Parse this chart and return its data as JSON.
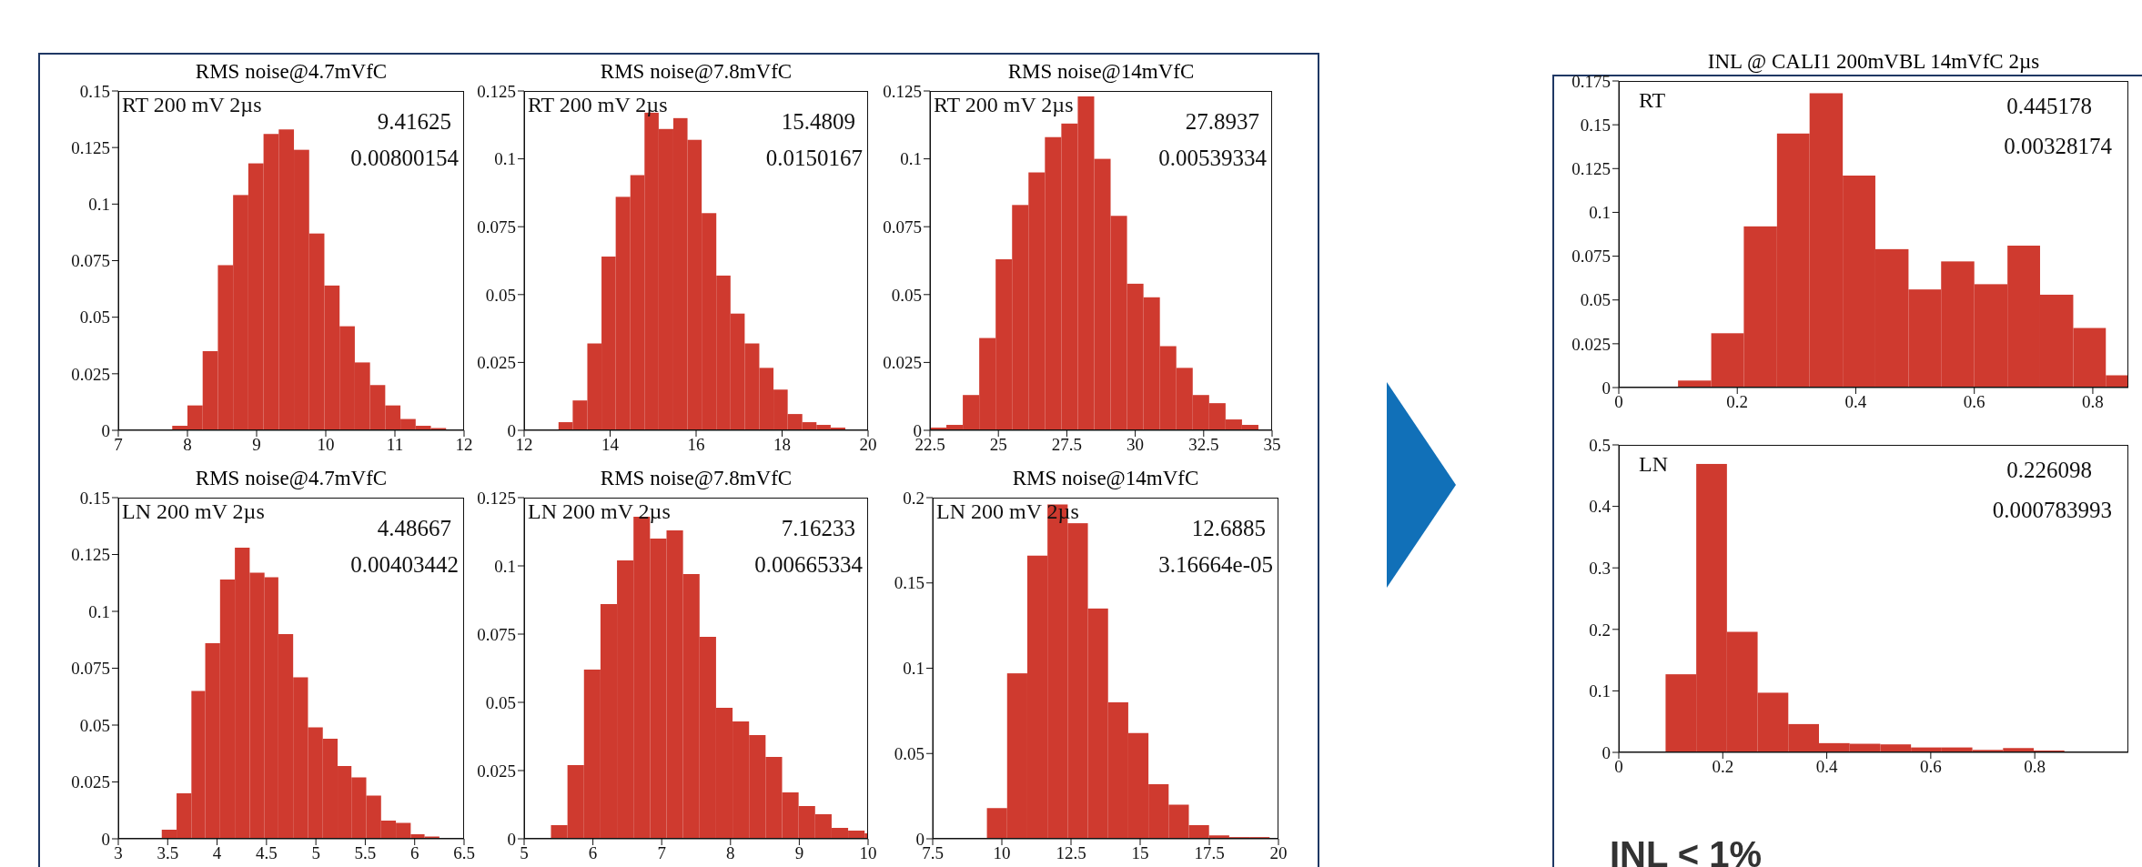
{
  "chart_data": [
    {
      "type": "histogram",
      "title": "RMS noise@4.7mVfC",
      "annotations": [
        "RT 200 mV 2µs",
        "9.41625",
        "0.00800154"
      ],
      "color": "#cf3a2f",
      "bins": [
        7.78,
        8.0,
        8.22,
        8.44,
        8.66,
        8.88,
        9.1,
        9.32,
        9.54,
        9.76,
        9.98,
        10.2,
        10.42,
        10.64,
        10.86,
        11.08,
        11.3,
        11.52,
        11.74
      ],
      "values": [
        0.002,
        0.011,
        0.035,
        0.073,
        0.104,
        0.118,
        0.131,
        0.133,
        0.124,
        0.087,
        0.064,
        0.046,
        0.03,
        0.02,
        0.011,
        0.005,
        0.002,
        0.001
      ],
      "xlim": [
        7,
        12
      ],
      "xticks": [
        7,
        8,
        9,
        10,
        11,
        12
      ],
      "ylim": [
        0,
        0.15
      ],
      "yticks": [
        0,
        0.025,
        0.05,
        0.075,
        0.1,
        0.125,
        0.15
      ]
    },
    {
      "type": "histogram",
      "title": "RMS noise@7.8mVfC",
      "annotations": [
        "RT 200 mV 2µs",
        "15.4809",
        "0.0150167"
      ],
      "color": "#cf3a2f",
      "bins": [
        12.8,
        13.13,
        13.47,
        13.8,
        14.13,
        14.47,
        14.8,
        15.13,
        15.47,
        15.8,
        16.13,
        16.47,
        16.8,
        17.13,
        17.47,
        17.8,
        18.13,
        18.47,
        18.8,
        19.13,
        19.47
      ],
      "values": [
        0.003,
        0.011,
        0.032,
        0.064,
        0.086,
        0.094,
        0.117,
        0.111,
        0.115,
        0.107,
        0.08,
        0.057,
        0.043,
        0.032,
        0.023,
        0.015,
        0.006,
        0.003,
        0.002,
        0.001
      ],
      "xlim": [
        12,
        20
      ],
      "xticks": [
        12,
        14,
        16,
        18,
        20
      ],
      "ylim": [
        0,
        0.125
      ],
      "yticks": [
        0,
        0.025,
        0.05,
        0.075,
        0.1,
        0.125
      ]
    },
    {
      "type": "histogram",
      "title": "RMS noise@14mVfC",
      "annotations": [
        "RT 200 mV 2µs",
        "27.8937",
        "0.00539334"
      ],
      "color": "#cf3a2f",
      "bins": [
        22.5,
        23.1,
        23.7,
        24.3,
        24.9,
        25.5,
        26.1,
        26.7,
        27.3,
        27.9,
        28.5,
        29.1,
        29.7,
        30.3,
        30.9,
        31.5,
        32.1,
        32.7,
        33.3,
        33.9,
        34.5
      ],
      "values": [
        0.001,
        0.002,
        0.013,
        0.034,
        0.063,
        0.083,
        0.095,
        0.108,
        0.113,
        0.123,
        0.1,
        0.079,
        0.054,
        0.049,
        0.031,
        0.023,
        0.013,
        0.01,
        0.004,
        0.002
      ],
      "xlim": [
        22.5,
        35
      ],
      "xticks": [
        22.5,
        25,
        27.5,
        30,
        32.5,
        35
      ],
      "ylim": [
        0,
        0.125
      ],
      "yticks": [
        0,
        0.025,
        0.05,
        0.075,
        0.1,
        0.125
      ]
    },
    {
      "type": "histogram",
      "title": "RMS noise@4.7mVfC",
      "annotations": [
        "LN 200 mV 2µs",
        "4.48667",
        "0.00403442"
      ],
      "color": "#cf3a2f",
      "bins": [
        3.44,
        3.59,
        3.74,
        3.88,
        4.03,
        4.18,
        4.33,
        4.48,
        4.62,
        4.77,
        4.92,
        5.07,
        5.22,
        5.36,
        5.51,
        5.66,
        5.81,
        5.96,
        6.1,
        6.25
      ],
      "values": [
        0.004,
        0.02,
        0.065,
        0.086,
        0.114,
        0.128,
        0.117,
        0.115,
        0.09,
        0.071,
        0.049,
        0.044,
        0.032,
        0.027,
        0.019,
        0.008,
        0.007,
        0.002,
        0.001
      ],
      "xlim": [
        3,
        6.5
      ],
      "xticks": [
        3,
        3.5,
        4,
        4.5,
        5,
        5.5,
        6,
        6.5
      ],
      "ylim": [
        0,
        0.15
      ],
      "yticks": [
        0,
        0.025,
        0.05,
        0.075,
        0.1,
        0.125,
        0.15
      ]
    },
    {
      "type": "histogram",
      "title": "RMS noise@7.8mVfC",
      "annotations": [
        "LN 200 mV 2µs",
        "7.16233",
        "0.00665334"
      ],
      "color": "#cf3a2f",
      "bins": [
        5.39,
        5.63,
        5.87,
        6.11,
        6.35,
        6.59,
        6.83,
        7.07,
        7.31,
        7.55,
        7.79,
        8.03,
        8.27,
        8.51,
        8.75,
        8.99,
        9.23,
        9.47,
        9.71,
        9.95,
        10
      ],
      "values": [
        0.005,
        0.027,
        0.062,
        0.086,
        0.102,
        0.118,
        0.11,
        0.113,
        0.097,
        0.074,
        0.048,
        0.043,
        0.038,
        0.03,
        0.017,
        0.012,
        0.009,
        0.004,
        0.003,
        0.002
      ],
      "xlim": [
        5,
        10
      ],
      "xticks": [
        5,
        6,
        7,
        8,
        9,
        10
      ],
      "ylim": [
        0,
        0.125
      ],
      "yticks": [
        0,
        0.025,
        0.05,
        0.075,
        0.1,
        0.125
      ]
    },
    {
      "type": "histogram",
      "title": "RMS noise@14mVfC",
      "annotations": [
        "LN 200 mV 2µs",
        "12.6885",
        "3.16664e-05"
      ],
      "color": "#cf3a2f",
      "bins": [
        9.46,
        10.19,
        10.92,
        11.65,
        12.38,
        13.11,
        13.84,
        14.57,
        15.3,
        16.03,
        16.76,
        17.49,
        18.22,
        18.95,
        19.68
      ],
      "values": [
        0.018,
        0.097,
        0.166,
        0.196,
        0.185,
        0.135,
        0.08,
        0.062,
        0.032,
        0.02,
        0.008,
        0.002,
        0.001,
        0.001
      ],
      "xlim": [
        7.5,
        20
      ],
      "xticks": [
        7.5,
        10,
        12.5,
        15,
        17.5,
        20
      ],
      "ylim": [
        0,
        0.2
      ],
      "yticks": [
        0,
        0.05,
        0.1,
        0.15,
        0.2
      ]
    },
    {
      "type": "histogram",
      "title": "INL @ CALI1 200mVBL 14mVfC 2µs",
      "annotations": [
        "RT",
        "0.445178",
        "0.00328174"
      ],
      "color": "#cf3a2f",
      "bins": [
        0.1,
        0.156,
        0.211,
        0.267,
        0.322,
        0.378,
        0.433,
        0.489,
        0.544,
        0.6,
        0.656,
        0.711,
        0.767,
        0.822,
        0.86
      ],
      "values": [
        0.004,
        0.031,
        0.092,
        0.145,
        0.168,
        0.121,
        0.079,
        0.056,
        0.072,
        0.059,
        0.081,
        0.053,
        0.034,
        0.007
      ],
      "xlim": [
        0,
        0.86
      ],
      "xticks": [
        0,
        0.2,
        0.4,
        0.6,
        0.8
      ],
      "ylim": [
        0,
        0.175
      ],
      "yticks": [
        0,
        0.025,
        0.05,
        0.075,
        0.1,
        0.125,
        0.15,
        0.175
      ]
    },
    {
      "type": "histogram",
      "annotations": [
        "LN",
        "0.226098",
        "0.000783993",
        "INL < 1%"
      ],
      "color": "#cf3a2f",
      "bins": [
        0.09,
        0.149,
        0.208,
        0.267,
        0.326,
        0.385,
        0.444,
        0.503,
        0.562,
        0.621,
        0.68,
        0.739,
        0.798,
        0.857,
        0.916
      ],
      "values": [
        0.127,
        0.469,
        0.196,
        0.097,
        0.046,
        0.015,
        0.014,
        0.013,
        0.008,
        0.008,
        0.004,
        0.007,
        0.003,
        0.001
      ],
      "xlim": [
        0,
        0.98
      ],
      "xticks": [
        0,
        0.2,
        0.4,
        0.6,
        0.8
      ],
      "ylim": [
        0,
        0.5
      ],
      "yticks": [
        0,
        0.1,
        0.2,
        0.3,
        0.4,
        0.5
      ]
    }
  ]
}
